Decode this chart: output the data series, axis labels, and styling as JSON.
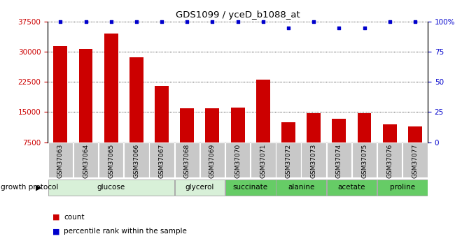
{
  "title": "GDS1099 / yceD_b1088_at",
  "samples": [
    "GSM37063",
    "GSM37064",
    "GSM37065",
    "GSM37066",
    "GSM37067",
    "GSM37068",
    "GSM37069",
    "GSM37070",
    "GSM37071",
    "GSM37072",
    "GSM37073",
    "GSM37074",
    "GSM37075",
    "GSM37076",
    "GSM37077"
  ],
  "counts": [
    31500,
    30700,
    34500,
    28700,
    21500,
    16000,
    16000,
    16200,
    23000,
    12500,
    14700,
    13400,
    14700,
    12000,
    11500
  ],
  "percentile_ranks": [
    100,
    100,
    100,
    100,
    100,
    100,
    100,
    100,
    100,
    95,
    100,
    95,
    95,
    100,
    100
  ],
  "ylim_left": [
    7500,
    37500
  ],
  "ylim_right": [
    0,
    100
  ],
  "yticks_left": [
    7500,
    15000,
    22500,
    30000,
    37500
  ],
  "yticks_right": [
    0,
    25,
    50,
    75,
    100
  ],
  "groups": [
    {
      "label": "glucose",
      "start": 0,
      "end": 4,
      "color": "#d8f0d8"
    },
    {
      "label": "glycerol",
      "start": 5,
      "end": 6,
      "color": "#d8f0d8"
    },
    {
      "label": "succinate",
      "start": 7,
      "end": 8,
      "color": "#66cc66"
    },
    {
      "label": "alanine",
      "start": 9,
      "end": 10,
      "color": "#66cc66"
    },
    {
      "label": "acetate",
      "start": 11,
      "end": 12,
      "color": "#66cc66"
    },
    {
      "label": "proline",
      "start": 13,
      "end": 14,
      "color": "#66cc66"
    }
  ],
  "bar_color": "#cc0000",
  "dot_color": "#0000cc",
  "group_label_text": "growth protocol",
  "xtick_bg": "#c8c8c8"
}
